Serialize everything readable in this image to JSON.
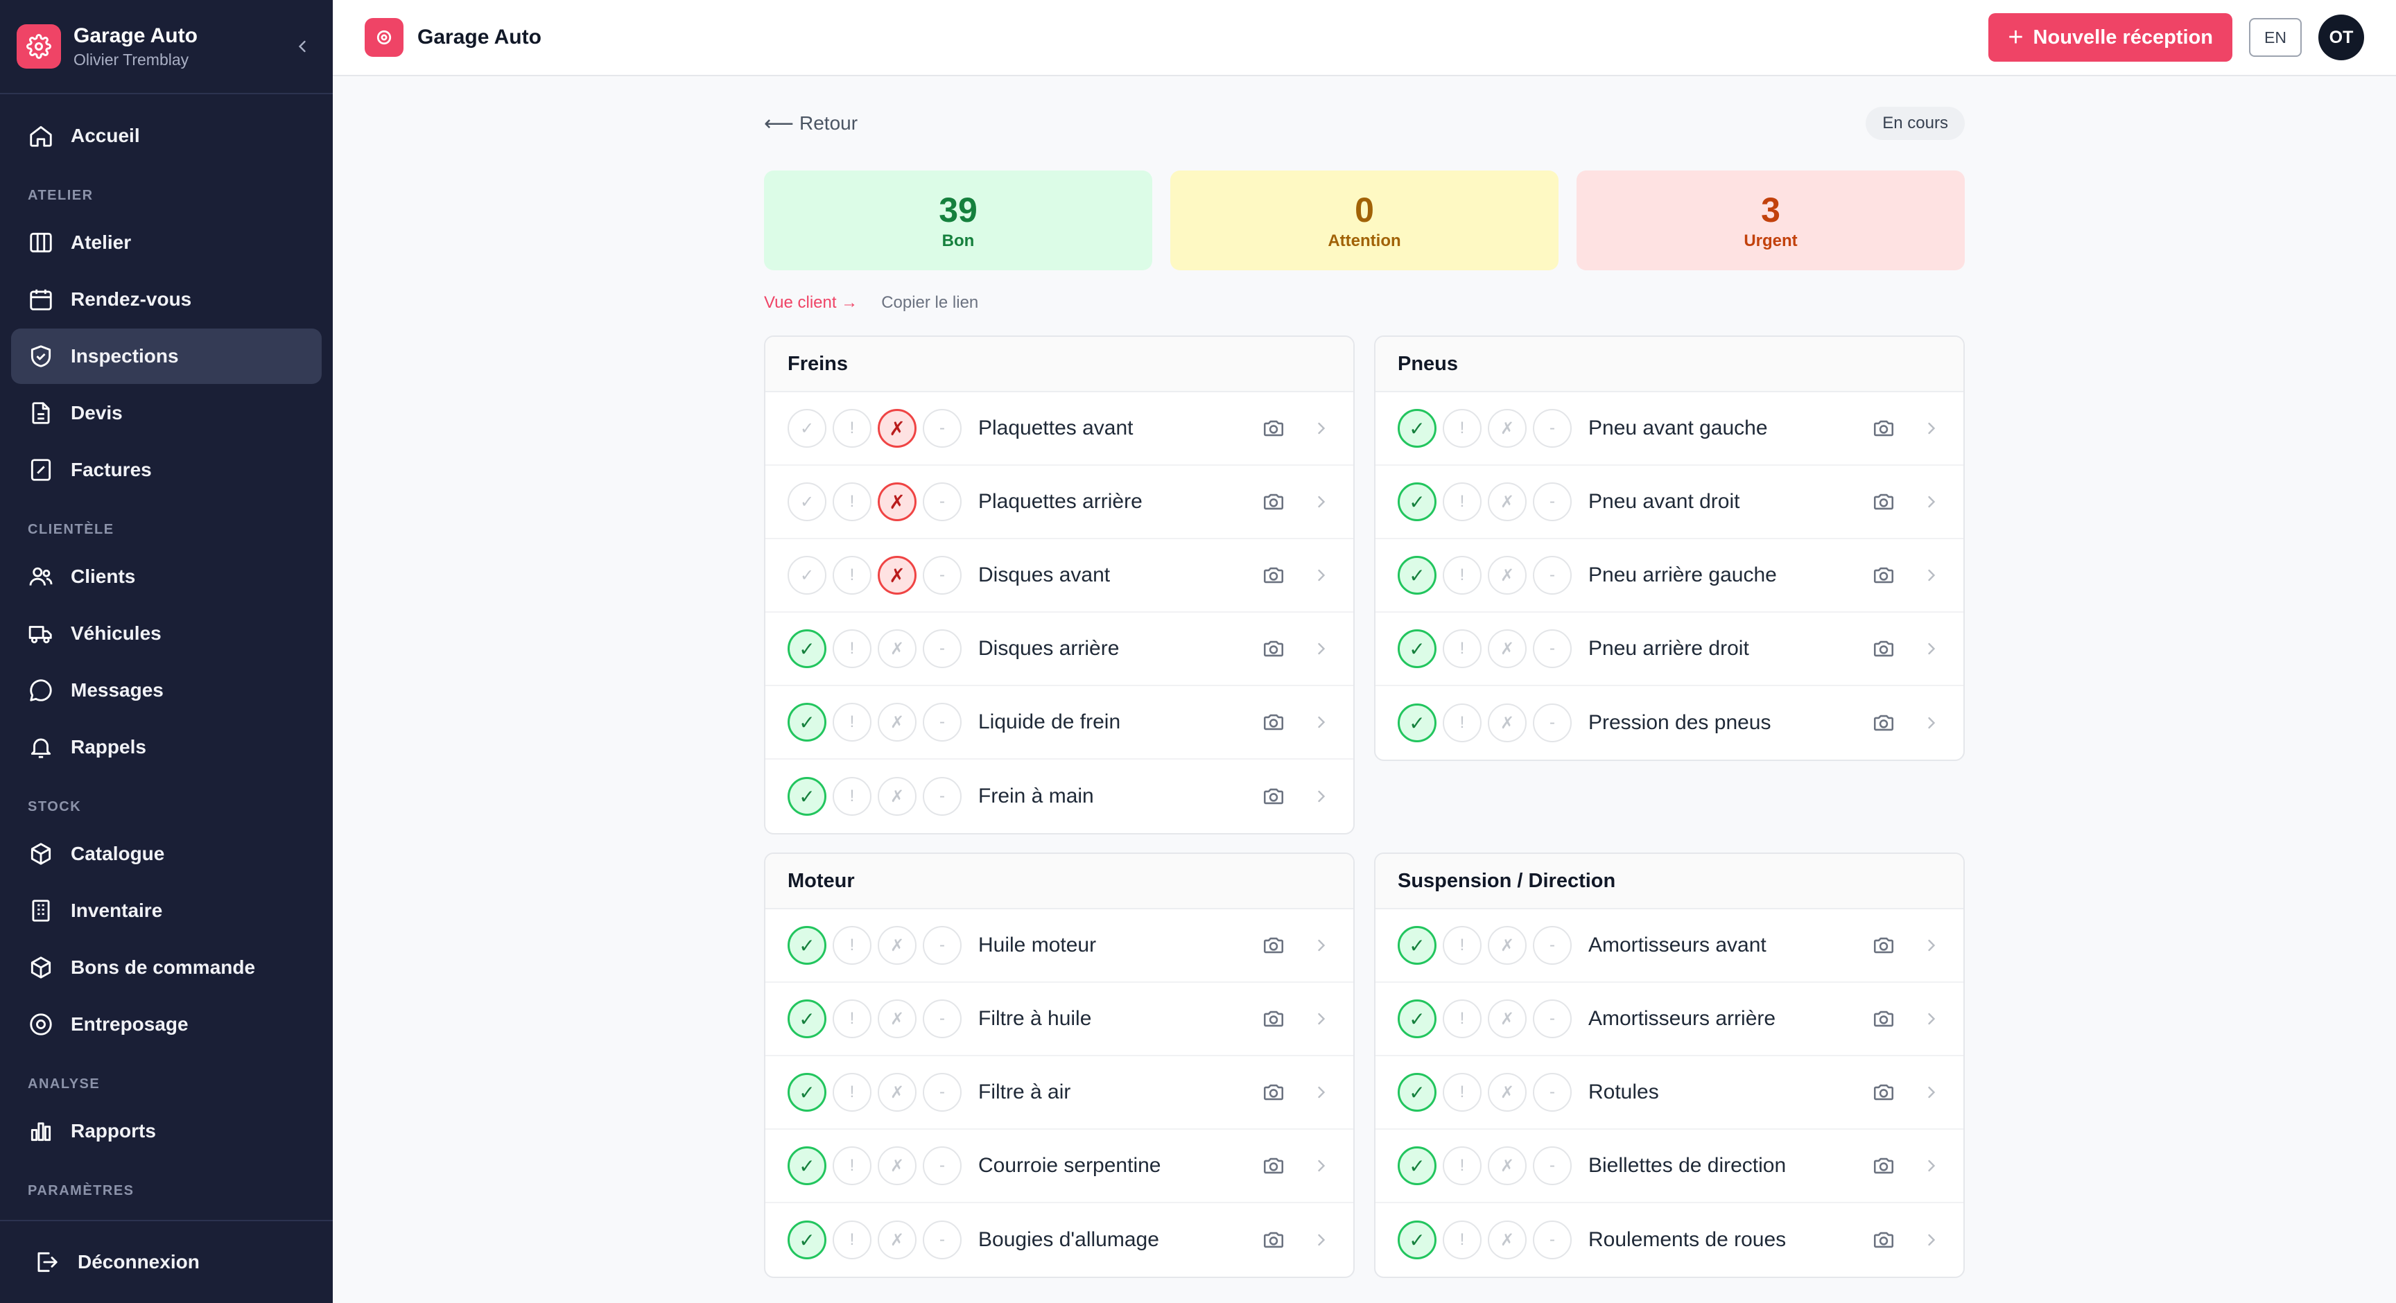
{
  "sidebar": {
    "app_name": "Garage Auto",
    "user_name": "Olivier Tremblay",
    "home": "Accueil",
    "sections": {
      "atelier": "ATELIER",
      "clientele": "CLIENTÈLE",
      "stock": "STOCK",
      "analyse": "ANALYSE",
      "parametres": "PARAMÈTRES"
    },
    "items": {
      "atelier": "Atelier",
      "rendezvous": "Rendez-vous",
      "inspections": "Inspections",
      "devis": "Devis",
      "factures": "Factures",
      "clients": "Clients",
      "vehicules": "Véhicules",
      "messages": "Messages",
      "rappels": "Rappels",
      "catalogue": "Catalogue",
      "inventaire": "Inventaire",
      "bons": "Bons de commande",
      "entreposage": "Entreposage",
      "rapports": "Rapports"
    },
    "logout": "Déconnexion",
    "active_item": "Inspections"
  },
  "header": {
    "title": "Garage Auto",
    "new_button": "Nouvelle réception",
    "lang": "EN",
    "avatar": "OT"
  },
  "page": {
    "back": "Retour",
    "status": "En cours",
    "stats": {
      "good": {
        "value": "39",
        "label": "Bon"
      },
      "attention": {
        "value": "0",
        "label": "Attention"
      },
      "urgent": {
        "value": "3",
        "label": "Urgent"
      }
    },
    "client_view": "Vue client →",
    "copy_link": "Copier le lien"
  },
  "glyphs": {
    "ok": "✓",
    "warn": "!",
    "bad": "✗",
    "na": "-"
  },
  "colors": {
    "accent": "#ef4466",
    "sidebar": "#1a1f36",
    "good": "#22c55e",
    "urgent": "#ef4444"
  },
  "sections": [
    {
      "title": "Freins",
      "items": [
        {
          "label": "Plaquettes avant",
          "status": "bad"
        },
        {
          "label": "Plaquettes arrière",
          "status": "bad"
        },
        {
          "label": "Disques avant",
          "status": "bad"
        },
        {
          "label": "Disques arrière",
          "status": "ok"
        },
        {
          "label": "Liquide de frein",
          "status": "ok"
        },
        {
          "label": "Frein à main",
          "status": "ok"
        }
      ]
    },
    {
      "title": "Pneus",
      "items": [
        {
          "label": "Pneu avant gauche",
          "status": "ok"
        },
        {
          "label": "Pneu avant droit",
          "status": "ok"
        },
        {
          "label": "Pneu arrière gauche",
          "status": "ok"
        },
        {
          "label": "Pneu arrière droit",
          "status": "ok"
        },
        {
          "label": "Pression des pneus",
          "status": "ok"
        }
      ]
    },
    {
      "title": "Moteur",
      "items": [
        {
          "label": "Huile moteur",
          "status": "ok"
        },
        {
          "label": "Filtre à huile",
          "status": "ok"
        },
        {
          "label": "Filtre à air",
          "status": "ok"
        },
        {
          "label": "Courroie serpentine",
          "status": "ok"
        },
        {
          "label": "Bougies d'allumage",
          "status": "ok"
        }
      ]
    },
    {
      "title": "Suspension / Direction",
      "items": [
        {
          "label": "Amortisseurs avant",
          "status": "ok"
        },
        {
          "label": "Amortisseurs arrière",
          "status": "ok"
        },
        {
          "label": "Rotules",
          "status": "ok"
        },
        {
          "label": "Biellettes de direction",
          "status": "ok"
        },
        {
          "label": "Roulements de roues",
          "status": "ok"
        }
      ]
    }
  ]
}
